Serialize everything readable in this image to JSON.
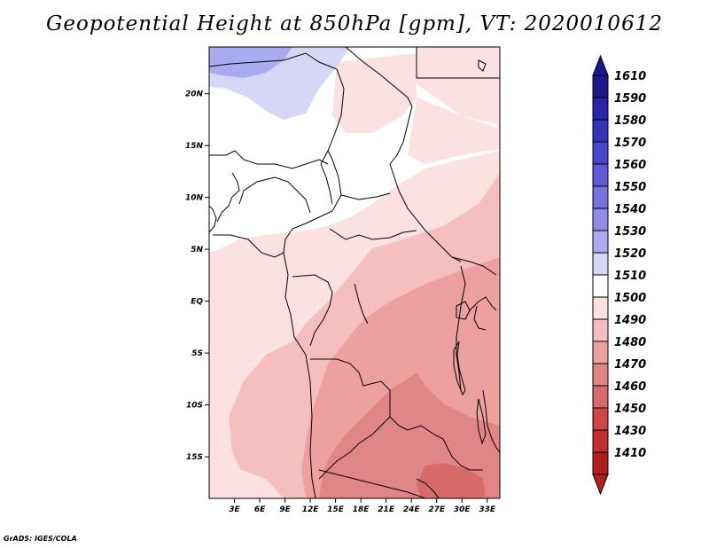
{
  "title": "Geopotential Height at 850hPa [gpm], VT: 2020010612",
  "credit": "GrADS: IGES/COLA",
  "map": {
    "lat_labels": [
      "20N",
      "15N",
      "10N",
      "5N",
      "EQ",
      "5S",
      "10S",
      "15S"
    ],
    "lon_labels": [
      "3E",
      "6E",
      "9E",
      "12E",
      "15E",
      "18E",
      "21E",
      "24E",
      "27E",
      "30E",
      "33E"
    ],
    "lat_range": [
      -19,
      24.5
    ],
    "lon_range": [
      0,
      34.5
    ]
  },
  "colorbar": {
    "levels": [
      {
        "label": "1610",
        "color": "#1a1a8c"
      },
      {
        "label": "1590",
        "color": "#2626a6"
      },
      {
        "label": "1580",
        "color": "#3333bb"
      },
      {
        "label": "1570",
        "color": "#4747cc"
      },
      {
        "label": "1560",
        "color": "#5c5cd9"
      },
      {
        "label": "1550",
        "color": "#7373e0"
      },
      {
        "label": "1540",
        "color": "#8d8de8"
      },
      {
        "label": "1530",
        "color": "#aaaaf0"
      },
      {
        "label": "1520",
        "color": "#d6d6f7"
      },
      {
        "label": "1510",
        "color": "#ffffff"
      },
      {
        "label": "1500",
        "color": "#fbe1df"
      },
      {
        "label": "1490",
        "color": "#f5bfbd"
      },
      {
        "label": "1480",
        "color": "#eda19f"
      },
      {
        "label": "1470",
        "color": "#e08686"
      },
      {
        "label": "1460",
        "color": "#d96a6a"
      },
      {
        "label": "1450",
        "color": "#d24545"
      },
      {
        "label": "1430",
        "color": "#c22f2f"
      },
      {
        "label": "1410",
        "color": "#b01e1e"
      }
    ]
  }
}
